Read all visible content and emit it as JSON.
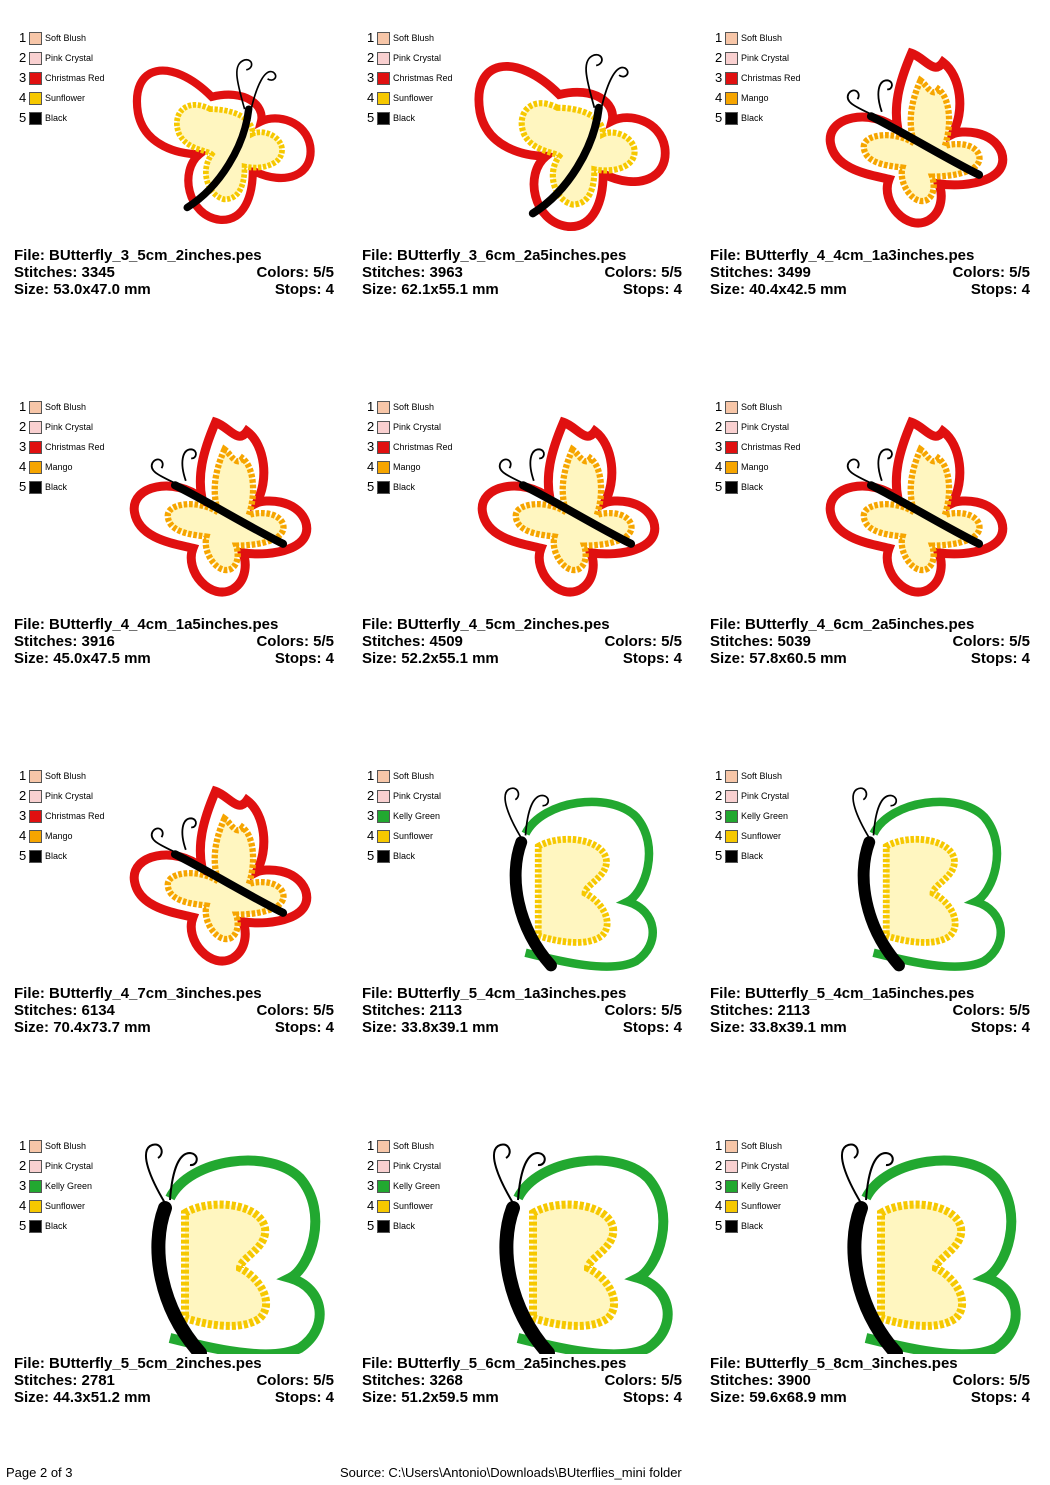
{
  "footer": {
    "page": "Page 2 of 3",
    "source": "Source: C:\\Users\\Antonio\\Downloads\\BUterflies_mini folder"
  },
  "labels": {
    "file": "File: ",
    "stitches": "Stitches: ",
    "size": "Size: ",
    "colors": "Colors: ",
    "stops": "Stops: "
  },
  "designs": [
    {
      "file": "BUtterfly_3_5cm_2inches.pes",
      "stitches": "3345",
      "colors": "5/5",
      "size": "53.0x47.0 mm",
      "stops": "4",
      "style": "wide",
      "scale": 0.82,
      "palette": [
        {
          "num": "1",
          "name": "Soft Blush",
          "color": "#f7c6a8"
        },
        {
          "num": "2",
          "name": "Pink Crystal",
          "color": "#f9d0d0"
        },
        {
          "num": "3",
          "name": "Christmas Red",
          "color": "#e01010"
        },
        {
          "num": "4",
          "name": "Sunflower",
          "color": "#f6c800"
        },
        {
          "num": "5",
          "name": "Black",
          "color": "#000000"
        }
      ]
    },
    {
      "file": "BUtterfly_3_6cm_2a5inches.pes",
      "stitches": "3963",
      "colors": "5/5",
      "size": "62.1x55.1 mm",
      "stops": "4",
      "style": "wide",
      "scale": 0.88,
      "palette": [
        {
          "num": "1",
          "name": "Soft Blush",
          "color": "#f7c6a8"
        },
        {
          "num": "2",
          "name": "Pink Crystal",
          "color": "#f9d0d0"
        },
        {
          "num": "3",
          "name": "Christmas Red",
          "color": "#e01010"
        },
        {
          "num": "4",
          "name": "Sunflower",
          "color": "#f6c800"
        },
        {
          "num": "5",
          "name": "Black",
          "color": "#000000"
        }
      ]
    },
    {
      "file": "BUtterfly_4_4cm_1a3inches.pes",
      "stitches": "3499",
      "colors": "5/5",
      "size": "40.4x42.5 mm",
      "stops": "4",
      "style": "tall",
      "scale": 0.9,
      "palette": [
        {
          "num": "1",
          "name": "Soft Blush",
          "color": "#f7c6a8"
        },
        {
          "num": "2",
          "name": "Pink Crystal",
          "color": "#f9d0d0"
        },
        {
          "num": "3",
          "name": "Christmas Red",
          "color": "#e01010"
        },
        {
          "num": "4",
          "name": "Mango",
          "color": "#f6a500"
        },
        {
          "num": "5",
          "name": "Black",
          "color": "#000000"
        }
      ]
    },
    {
      "file": "BUtterfly_4_4cm_1a5inches.pes",
      "stitches": "3916",
      "colors": "5/5",
      "size": "45.0x47.5 mm",
      "stops": "4",
      "style": "tall",
      "scale": 0.9,
      "palette": [
        {
          "num": "1",
          "name": "Soft Blush",
          "color": "#f7c6a8"
        },
        {
          "num": "2",
          "name": "Pink Crystal",
          "color": "#f9d0d0"
        },
        {
          "num": "3",
          "name": "Christmas Red",
          "color": "#e01010"
        },
        {
          "num": "4",
          "name": "Mango",
          "color": "#f6a500"
        },
        {
          "num": "5",
          "name": "Black",
          "color": "#000000"
        }
      ]
    },
    {
      "file": "BUtterfly_4_5cm_2inches.pes",
      "stitches": "4509",
      "colors": "5/5",
      "size": "52.2x55.1 mm",
      "stops": "4",
      "style": "tall",
      "scale": 0.9,
      "palette": [
        {
          "num": "1",
          "name": "Soft Blush",
          "color": "#f7c6a8"
        },
        {
          "num": "2",
          "name": "Pink Crystal",
          "color": "#f9d0d0"
        },
        {
          "num": "3",
          "name": "Christmas Red",
          "color": "#e01010"
        },
        {
          "num": "4",
          "name": "Mango",
          "color": "#f6a500"
        },
        {
          "num": "5",
          "name": "Black",
          "color": "#000000"
        }
      ]
    },
    {
      "file": "BUtterfly_4_6cm_2a5inches.pes",
      "stitches": "5039",
      "colors": "5/5",
      "size": "57.8x60.5 mm",
      "stops": "4",
      "style": "tall",
      "scale": 0.9,
      "palette": [
        {
          "num": "1",
          "name": "Soft Blush",
          "color": "#f7c6a8"
        },
        {
          "num": "2",
          "name": "Pink Crystal",
          "color": "#f9d0d0"
        },
        {
          "num": "3",
          "name": "Christmas Red",
          "color": "#e01010"
        },
        {
          "num": "4",
          "name": "Mango",
          "color": "#f6a500"
        },
        {
          "num": "5",
          "name": "Black",
          "color": "#000000"
        }
      ]
    },
    {
      "file": "BUtterfly_4_7cm_3inches.pes",
      "stitches": "6134",
      "colors": "5/5",
      "size": "70.4x73.7 mm",
      "stops": "4",
      "style": "tall",
      "scale": 0.9,
      "palette": [
        {
          "num": "1",
          "name": "Soft Blush",
          "color": "#f7c6a8"
        },
        {
          "num": "2",
          "name": "Pink Crystal",
          "color": "#f9d0d0"
        },
        {
          "num": "3",
          "name": "Christmas Red",
          "color": "#e01010"
        },
        {
          "num": "4",
          "name": "Mango",
          "color": "#f6a500"
        },
        {
          "num": "5",
          "name": "Black",
          "color": "#000000"
        }
      ]
    },
    {
      "file": "BUtterfly_5_4cm_1a3inches.pes",
      "stitches": "2113",
      "colors": "5/5",
      "size": "33.8x39.1 mm",
      "stops": "4",
      "style": "side",
      "scale": 0.85,
      "palette": [
        {
          "num": "1",
          "name": "Soft Blush",
          "color": "#f7c6a8"
        },
        {
          "num": "2",
          "name": "Pink Crystal",
          "color": "#f9d0d0"
        },
        {
          "num": "3",
          "name": "Kelly Green",
          "color": "#22a830"
        },
        {
          "num": "4",
          "name": "Sunflower",
          "color": "#f6c800"
        },
        {
          "num": "5",
          "name": "Black",
          "color": "#000000"
        }
      ]
    },
    {
      "file": "BUtterfly_5_4cm_1a5inches.pes",
      "stitches": "2113",
      "colors": "5/5",
      "size": "33.8x39.1 mm",
      "stops": "4",
      "style": "side",
      "scale": 0.85,
      "palette": [
        {
          "num": "1",
          "name": "Soft Blush",
          "color": "#f7c6a8"
        },
        {
          "num": "2",
          "name": "Pink Crystal",
          "color": "#f9d0d0"
        },
        {
          "num": "3",
          "name": "Kelly Green",
          "color": "#22a830"
        },
        {
          "num": "4",
          "name": "Sunflower",
          "color": "#f6c800"
        },
        {
          "num": "5",
          "name": "Black",
          "color": "#000000"
        }
      ]
    },
    {
      "file": "BUtterfly_5_5cm_2inches.pes",
      "stitches": "2781",
      "colors": "5/5",
      "size": "44.3x51.2 mm",
      "stops": "4",
      "style": "side",
      "scale": 1.0,
      "palette": [
        {
          "num": "1",
          "name": "Soft Blush",
          "color": "#f7c6a8"
        },
        {
          "num": "2",
          "name": "Pink Crystal",
          "color": "#f9d0d0"
        },
        {
          "num": "3",
          "name": "Kelly Green",
          "color": "#22a830"
        },
        {
          "num": "4",
          "name": "Sunflower",
          "color": "#f6c800"
        },
        {
          "num": "5",
          "name": "Black",
          "color": "#000000"
        }
      ]
    },
    {
      "file": "BUtterfly_5_6cm_2a5inches.pes",
      "stitches": "3268",
      "colors": "5/5",
      "size": "51.2x59.5 mm",
      "stops": "4",
      "style": "side",
      "scale": 1.0,
      "palette": [
        {
          "num": "1",
          "name": "Soft Blush",
          "color": "#f7c6a8"
        },
        {
          "num": "2",
          "name": "Pink Crystal",
          "color": "#f9d0d0"
        },
        {
          "num": "3",
          "name": "Kelly Green",
          "color": "#22a830"
        },
        {
          "num": "4",
          "name": "Sunflower",
          "color": "#f6c800"
        },
        {
          "num": "5",
          "name": "Black",
          "color": "#000000"
        }
      ]
    },
    {
      "file": "BUtterfly_5_8cm_3inches.pes",
      "stitches": "3900",
      "colors": "5/5",
      "size": "59.6x68.9 mm",
      "stops": "4",
      "style": "side",
      "scale": 1.0,
      "palette": [
        {
          "num": "1",
          "name": "Soft Blush",
          "color": "#f7c6a8"
        },
        {
          "num": "2",
          "name": "Pink Crystal",
          "color": "#f9d0d0"
        },
        {
          "num": "3",
          "name": "Kelly Green",
          "color": "#22a830"
        },
        {
          "num": "4",
          "name": "Sunflower",
          "color": "#f6c800"
        },
        {
          "num": "5",
          "name": "Black",
          "color": "#000000"
        }
      ]
    }
  ]
}
